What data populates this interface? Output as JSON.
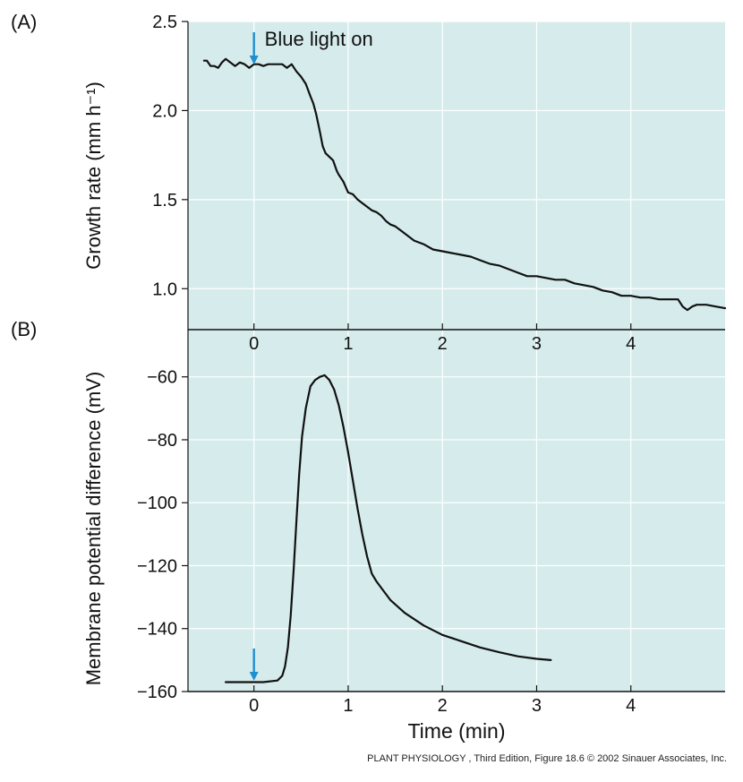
{
  "figure": {
    "caption": "PLANT PHYSIOLOGY , Third Edition, Figure 18.6  © 2002 Sinauer Associates, Inc.",
    "colors": {
      "plot_bg": "#d6ecec",
      "grid": "#ffffff",
      "line": "#111111",
      "arrow": "#1f8fd0"
    }
  },
  "chart_data": [
    {
      "type": "line",
      "panel_label": "(A)",
      "xlabel": "",
      "ylabel": "Growth rate (mm h⁻¹)",
      "xlim": [
        -0.7,
        5.0
      ],
      "ylim": [
        0.77,
        2.5
      ],
      "xticks": [
        0,
        1,
        2,
        3,
        4
      ],
      "yticks": [
        1.0,
        1.5,
        2.0,
        2.5
      ],
      "ytick_labels": [
        "1.0",
        "1.5",
        "2.0",
        "2.5"
      ],
      "annotation": {
        "text": "Blue light on",
        "x": 0
      },
      "series": [
        {
          "x": [
            -0.53,
            -0.5,
            -0.46,
            -0.42,
            -0.38,
            -0.34,
            -0.3,
            -0.25,
            -0.2,
            -0.15,
            -0.1,
            -0.05,
            0,
            0.05,
            0.1,
            0.15,
            0.2,
            0.25,
            0.3,
            0.35,
            0.4,
            0.45,
            0.5,
            0.55,
            0.6,
            0.63,
            0.66,
            0.7,
            0.73,
            0.76,
            0.8,
            0.84,
            0.88,
            0.9,
            0.95,
            1.0,
            1.05,
            1.1,
            1.15,
            1.2,
            1.25,
            1.3,
            1.35,
            1.4,
            1.45,
            1.5,
            1.6,
            1.7,
            1.8,
            1.9,
            2.0,
            2.1,
            2.2,
            2.3,
            2.4,
            2.5,
            2.6,
            2.7,
            2.8,
            2.9,
            3.0,
            3.1,
            3.2,
            3.3,
            3.4,
            3.5,
            3.6,
            3.7,
            3.8,
            3.9,
            4.0,
            4.1,
            4.2,
            4.3,
            4.4,
            4.5,
            4.55,
            4.6,
            4.65,
            4.7,
            4.8,
            4.9,
            5.0
          ],
          "y": [
            2.28,
            2.28,
            2.25,
            2.25,
            2.24,
            2.27,
            2.29,
            2.27,
            2.25,
            2.27,
            2.26,
            2.24,
            2.26,
            2.26,
            2.25,
            2.26,
            2.26,
            2.26,
            2.26,
            2.24,
            2.26,
            2.22,
            2.19,
            2.15,
            2.08,
            2.04,
            1.98,
            1.88,
            1.8,
            1.76,
            1.74,
            1.72,
            1.66,
            1.64,
            1.6,
            1.54,
            1.53,
            1.5,
            1.48,
            1.46,
            1.44,
            1.43,
            1.41,
            1.38,
            1.36,
            1.35,
            1.31,
            1.27,
            1.25,
            1.22,
            1.21,
            1.2,
            1.19,
            1.18,
            1.16,
            1.14,
            1.13,
            1.11,
            1.09,
            1.07,
            1.07,
            1.06,
            1.05,
            1.05,
            1.03,
            1.02,
            1.01,
            0.99,
            0.98,
            0.96,
            0.96,
            0.95,
            0.95,
            0.94,
            0.94,
            0.94,
            0.9,
            0.88,
            0.9,
            0.91,
            0.91,
            0.9,
            0.89
          ]
        }
      ]
    },
    {
      "type": "line",
      "panel_label": "(B)",
      "xlabel": "Time (min)",
      "ylabel": "Membrane potential difference (mV)",
      "xlim": [
        -0.7,
        5.0
      ],
      "ylim": [
        -160,
        -45
      ],
      "xticks": [
        0,
        1,
        2,
        3,
        4
      ],
      "yticks": [
        -160,
        -140,
        -120,
        -100,
        -80,
        -60
      ],
      "ytick_labels": [
        "−160",
        "−140",
        "−120",
        "−100",
        "−80",
        "−60"
      ],
      "series": [
        {
          "x": [
            -0.3,
            -0.1,
            0.1,
            0.25,
            0.3,
            0.33,
            0.36,
            0.39,
            0.42,
            0.45,
            0.48,
            0.51,
            0.55,
            0.6,
            0.65,
            0.7,
            0.75,
            0.8,
            0.85,
            0.9,
            0.95,
            1.0,
            1.05,
            1.1,
            1.15,
            1.2,
            1.25,
            1.3,
            1.35,
            1.45,
            1.6,
            1.8,
            2.0,
            2.2,
            2.4,
            2.6,
            2.8,
            3.0,
            3.15
          ],
          "y": [
            -157,
            -157,
            -157,
            -156.5,
            -155,
            -152,
            -146,
            -136,
            -122,
            -106,
            -91,
            -79,
            -70,
            -63,
            -61,
            -60,
            -59.5,
            -61,
            -64,
            -69,
            -76,
            -84,
            -93,
            -102,
            -110,
            -117,
            -122.5,
            -125,
            -127,
            -131,
            -135,
            -139,
            -142,
            -144,
            -146,
            -147.5,
            -148.8,
            -149.6,
            -150
          ]
        }
      ]
    }
  ]
}
